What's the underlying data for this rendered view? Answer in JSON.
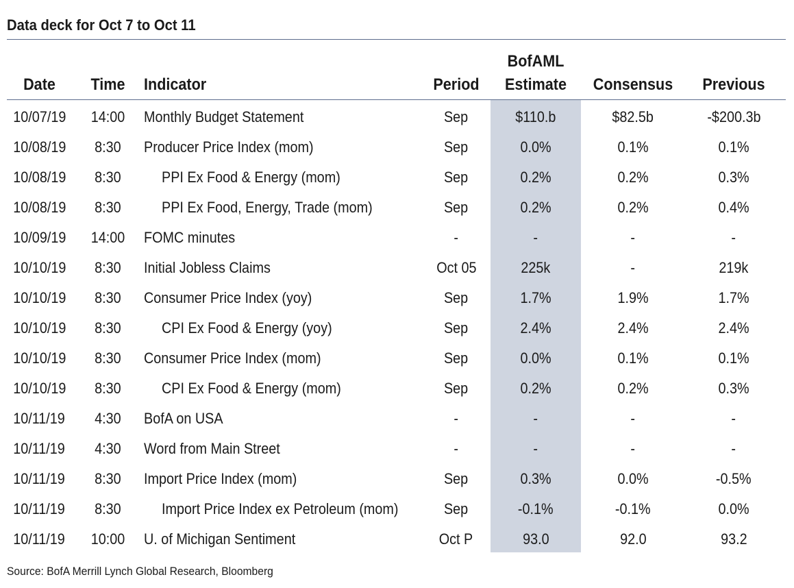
{
  "title": "Data deck for Oct 7 to Oct 11",
  "headers": {
    "date": "Date",
    "time": "Time",
    "indicator": "Indicator",
    "period": "Period",
    "estimate_top": "BofAML",
    "estimate_bottom": "Estimate",
    "consensus": "Consensus",
    "previous": "Previous"
  },
  "rows": [
    {
      "date": "10/07/19",
      "time": "14:00",
      "indicator": "Monthly Budget Statement",
      "indent": false,
      "period": "Sep",
      "estimate": "$110.b",
      "consensus": "$82.5b",
      "previous": "-$200.3b"
    },
    {
      "date": "10/08/19",
      "time": "8:30",
      "indicator": "Producer Price Index (mom)",
      "indent": false,
      "period": "Sep",
      "estimate": "0.0%",
      "consensus": "0.1%",
      "previous": "0.1%"
    },
    {
      "date": "10/08/19",
      "time": "8:30",
      "indicator": "PPI Ex Food & Energy (mom)",
      "indent": true,
      "period": "Sep",
      "estimate": "0.2%",
      "consensus": "0.2%",
      "previous": "0.3%"
    },
    {
      "date": "10/08/19",
      "time": "8:30",
      "indicator": "PPI Ex Food, Energy, Trade (mom)",
      "indent": true,
      "period": "Sep",
      "estimate": "0.2%",
      "consensus": "0.2%",
      "previous": "0.4%"
    },
    {
      "date": "10/09/19",
      "time": "14:00",
      "indicator": "FOMC minutes",
      "indent": false,
      "period": "-",
      "estimate": "-",
      "consensus": "-",
      "previous": "-"
    },
    {
      "date": "10/10/19",
      "time": "8:30",
      "indicator": "Initial Jobless Claims",
      "indent": false,
      "period": "Oct 05",
      "estimate": "225k",
      "consensus": "-",
      "previous": "219k"
    },
    {
      "date": "10/10/19",
      "time": "8:30",
      "indicator": "Consumer Price Index (yoy)",
      "indent": false,
      "period": "Sep",
      "estimate": "1.7%",
      "consensus": "1.9%",
      "previous": "1.7%"
    },
    {
      "date": "10/10/19",
      "time": "8:30",
      "indicator": "CPI Ex Food & Energy (yoy)",
      "indent": true,
      "period": "Sep",
      "estimate": "2.4%",
      "consensus": "2.4%",
      "previous": "2.4%"
    },
    {
      "date": "10/10/19",
      "time": "8:30",
      "indicator": "Consumer Price Index (mom)",
      "indent": false,
      "period": "Sep",
      "estimate": "0.0%",
      "consensus": "0.1%",
      "previous": "0.1%"
    },
    {
      "date": "10/10/19",
      "time": "8:30",
      "indicator": "CPI Ex Food & Energy (mom)",
      "indent": true,
      "period": "Sep",
      "estimate": "0.2%",
      "consensus": "0.2%",
      "previous": "0.3%"
    },
    {
      "date": "10/11/19",
      "time": "4:30",
      "indicator": "BofA on USA",
      "indent": false,
      "period": "-",
      "estimate": "-",
      "consensus": "-",
      "previous": "-"
    },
    {
      "date": "10/11/19",
      "time": "4:30",
      "indicator": "Word from Main Street",
      "indent": false,
      "period": "-",
      "estimate": "-",
      "consensus": "-",
      "previous": "-"
    },
    {
      "date": "10/11/19",
      "time": "8:30",
      "indicator": "Import Price Index (mom)",
      "indent": false,
      "period": "Sep",
      "estimate": "0.3%",
      "consensus": "0.0%",
      "previous": "-0.5%"
    },
    {
      "date": "10/11/19",
      "time": "8:30",
      "indicator": "Import Price Index ex Petroleum (mom)",
      "indent": true,
      "period": "Sep",
      "estimate": "-0.1%",
      "consensus": "-0.1%",
      "previous": "0.0%"
    },
    {
      "date": "10/11/19",
      "time": "10:00",
      "indicator": "U. of Michigan Sentiment",
      "indent": false,
      "period": "Oct P",
      "estimate": "93.0",
      "consensus": "92.0",
      "previous": "93.2"
    }
  ],
  "source": "Source: BofA Merrill Lynch Global Research, Bloomberg",
  "colors": {
    "rule": "#5b6b8c",
    "estimate_shade": "#cfd5e0"
  }
}
